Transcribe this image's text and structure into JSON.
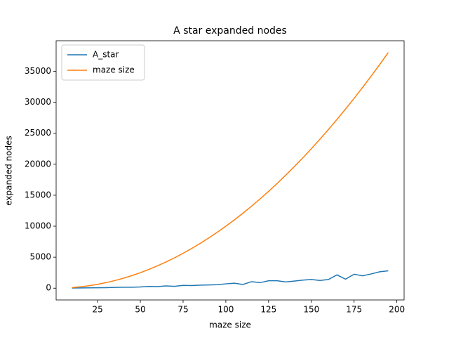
{
  "chart_data": {
    "type": "line",
    "title": "A star expanded nodes",
    "x_label": "maze size",
    "y_label": "expanded nodes",
    "x": [
      10,
      15,
      20,
      25,
      30,
      35,
      40,
      45,
      50,
      55,
      60,
      65,
      70,
      75,
      80,
      85,
      90,
      95,
      100,
      105,
      110,
      115,
      120,
      125,
      130,
      135,
      140,
      145,
      150,
      155,
      160,
      165,
      170,
      175,
      180,
      185,
      190,
      195
    ],
    "series": [
      {
        "name": "A_star",
        "color": "#1f77b4",
        "values": [
          20,
          40,
          60,
          70,
          90,
          130,
          150,
          160,
          200,
          280,
          250,
          370,
          300,
          450,
          430,
          500,
          520,
          560,
          700,
          800,
          600,
          1050,
          900,
          1200,
          1200,
          1000,
          1150,
          1300,
          1400,
          1250,
          1400,
          2150,
          1450,
          2250,
          2000,
          2300,
          2650,
          2800
        ]
      },
      {
        "name": "maze size",
        "color": "#ff7f0e",
        "values": [
          100,
          225,
          400,
          625,
          900,
          1225,
          1600,
          2025,
          2500,
          3025,
          3600,
          4225,
          4900,
          5625,
          6400,
          7225,
          8100,
          9025,
          10000,
          11025,
          12100,
          13225,
          14400,
          15625,
          16900,
          18225,
          19600,
          21025,
          22500,
          24025,
          25600,
          27225,
          28900,
          30625,
          32400,
          34225,
          36100,
          38025
        ]
      }
    ],
    "xlim": [
      0.75,
      204.25
    ],
    "ylim": [
      -1900,
      39925
    ],
    "xticks": [
      25,
      50,
      75,
      100,
      125,
      150,
      175,
      200
    ],
    "yticks": [
      0,
      5000,
      10000,
      15000,
      20000,
      25000,
      30000,
      35000
    ],
    "legend": "upper left"
  }
}
